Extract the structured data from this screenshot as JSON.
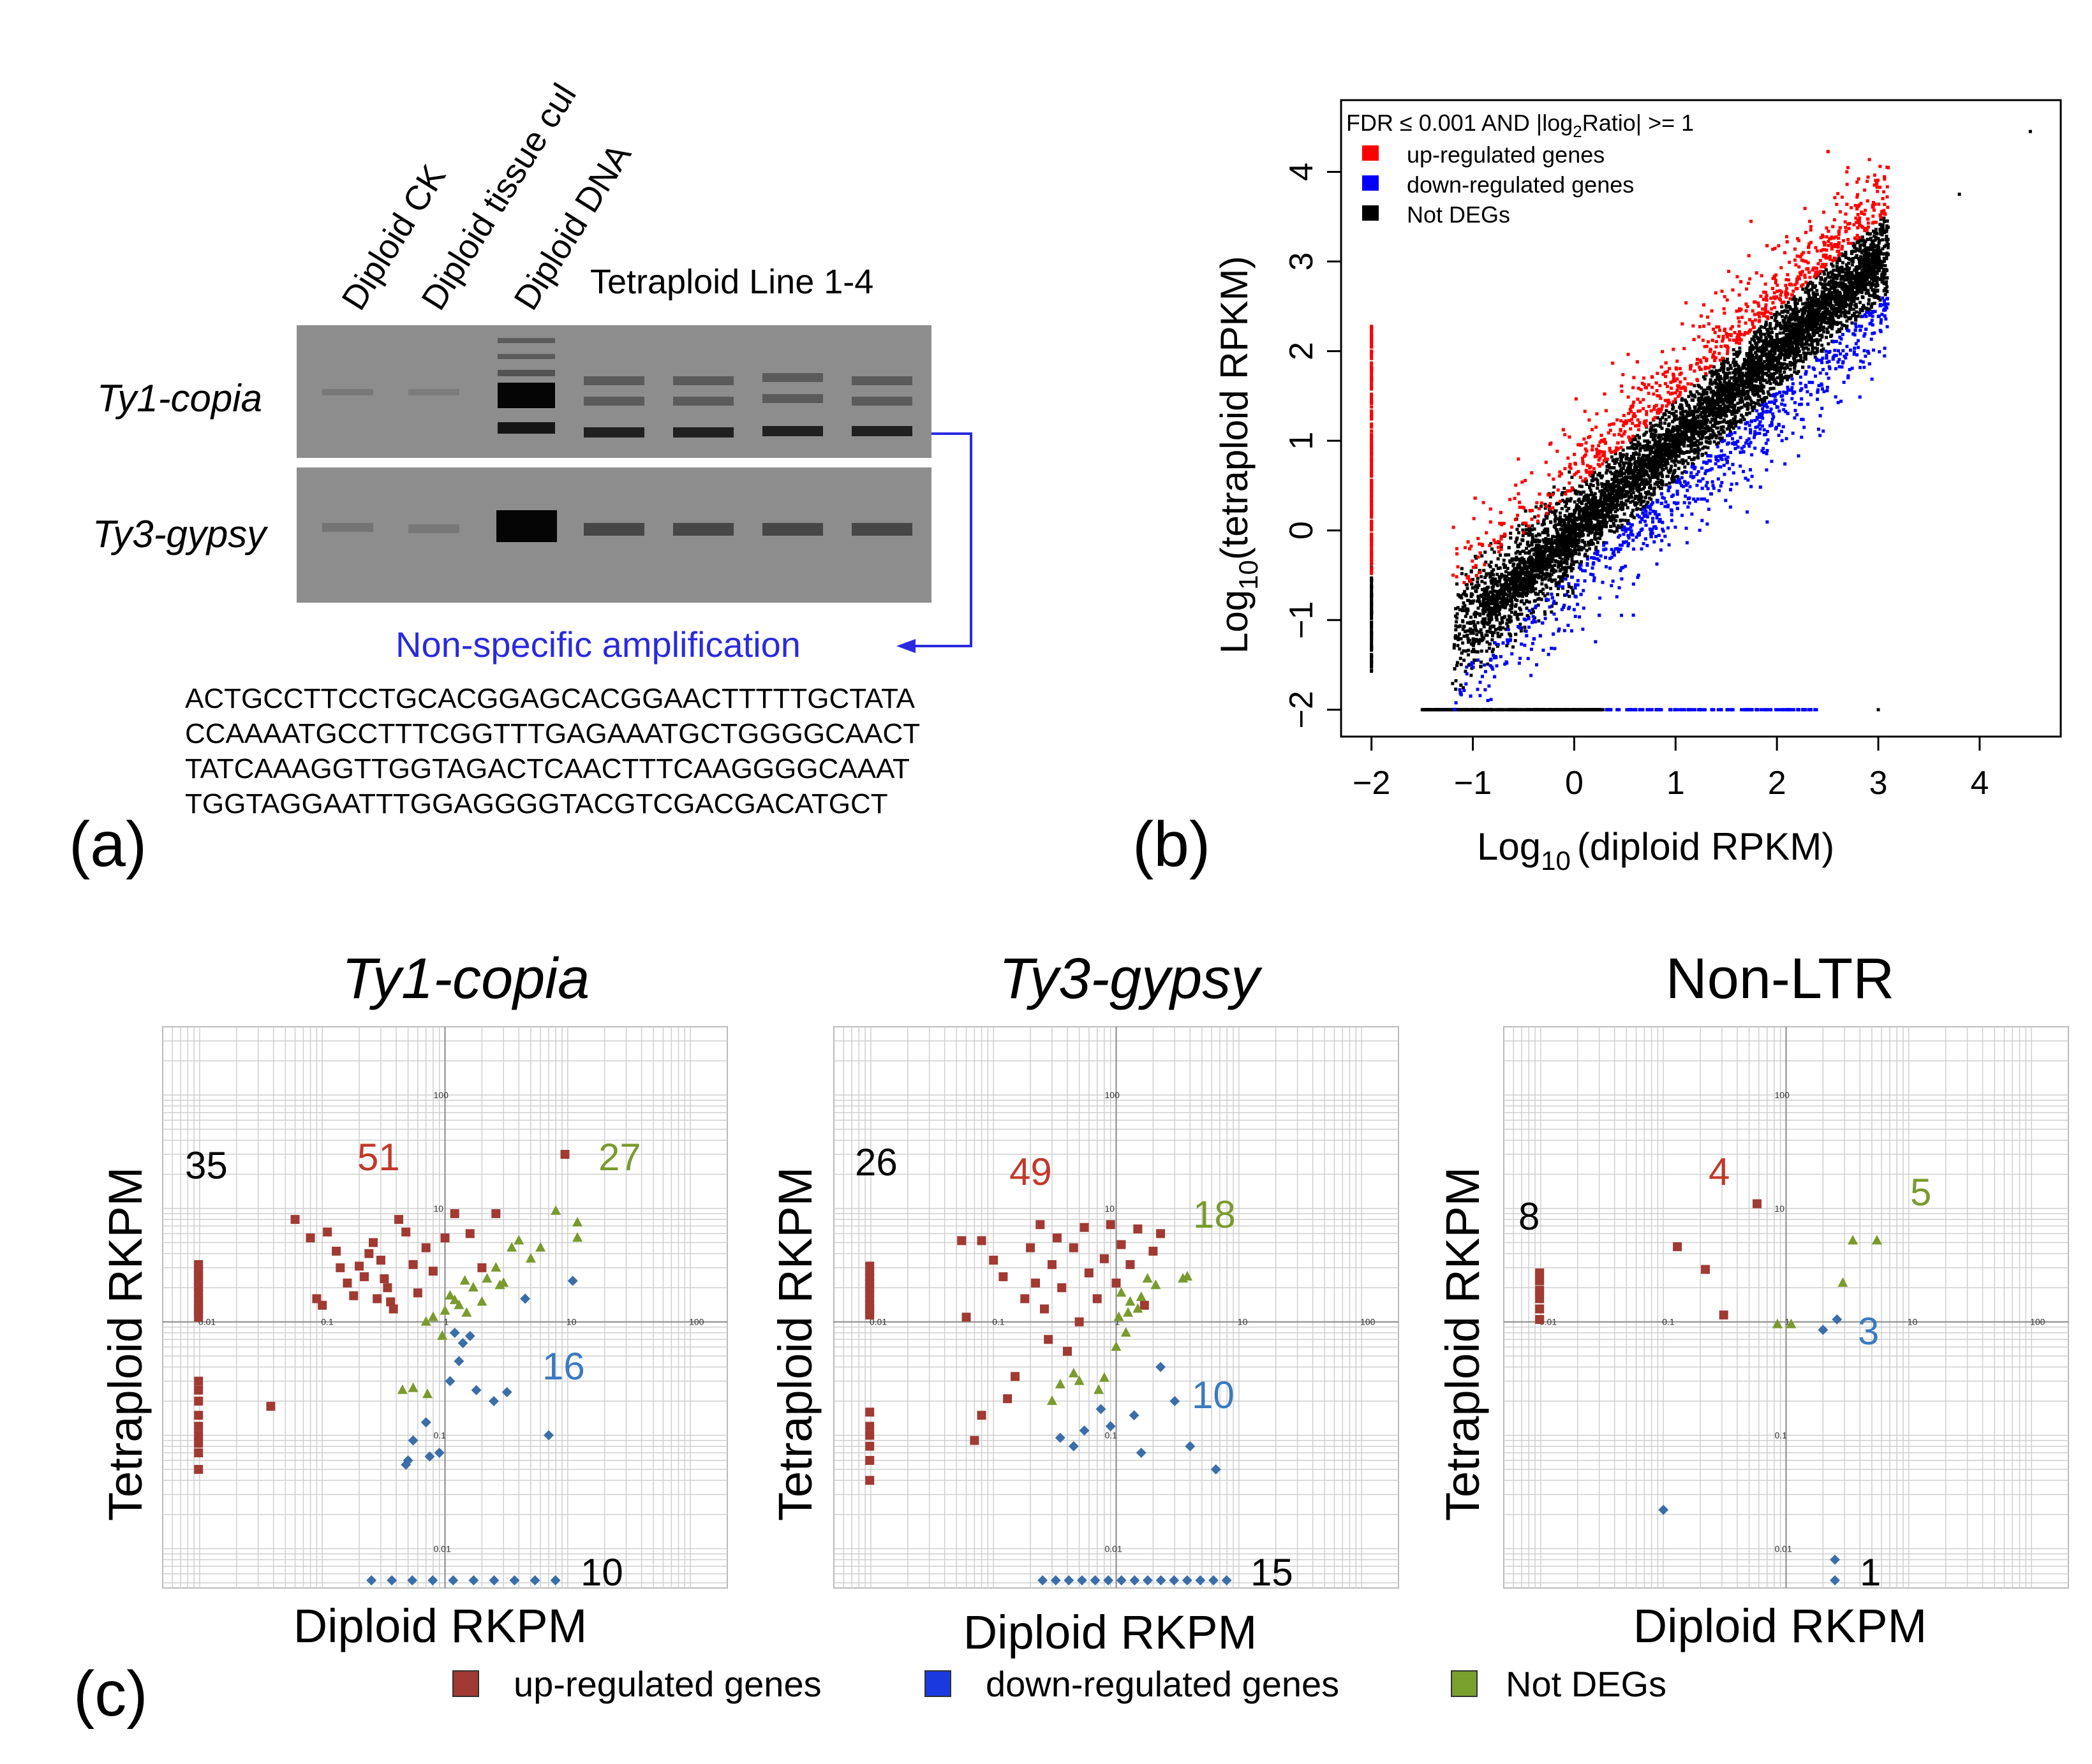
{
  "panel_a": {
    "panel_label": "(a)",
    "lane_labels": [
      "Diploid CK",
      "Diploid tissue cul",
      "Diploid DNA"
    ],
    "tetraploid_label": "Tetraploid Line 1-4",
    "gel_rows": [
      "Ty1-copia",
      "Ty3-gypsy"
    ],
    "nonspecific_label": "Non-specific amplification",
    "sequence": [
      "ACTGCCTTCCTGCACGGAGCACGGAACTTTTTGCTATA",
      "CCAAAATGCCTTTCGGTTTGAGAAATGCTGGGGCAACT",
      "TATCAAAGGTTGGTAGACTCAACTTTCAAGGGGCAAAT",
      "TGGTAGGAATTTGGAGGGGTACGTCGACGACATGCT"
    ],
    "colors": {
      "annotation": "#2a2ae0"
    }
  },
  "chart_data": [
    {
      "id": "b",
      "type": "scatter",
      "panel_label": "(b)",
      "xlabel_base": "Log",
      "xlabel_sub": "10",
      "xlabel_rest": "(diploid RPKM)",
      "ylabel_base": "Log",
      "ylabel_sub": "10",
      "ylabel_rest": "(tetraploid RPKM)",
      "xlim": [
        -2.3,
        4.8
      ],
      "ylim": [
        -2.3,
        4.8
      ],
      "xticks": [
        -2,
        -1,
        0,
        1,
        2,
        3,
        4
      ],
      "yticks": [
        -2,
        -1,
        0,
        1,
        2,
        3,
        4
      ],
      "legend_title_pre": "FDR ≤ 0.001 AND |log",
      "legend_title_sub": "2",
      "legend_title_post": "Ratio| >=  1",
      "legend": [
        {
          "name": "up-regulated genes",
          "color": "#ff0000"
        },
        {
          "name": "down-regulated genes",
          "color": "#0000ff"
        },
        {
          "name": "Not DEGs",
          "color": "#000000"
        }
      ]
    },
    {
      "id": "ty1",
      "type": "scatter",
      "scale": "log",
      "title": "Ty1-copia",
      "xlabel": "Diploid RKPM",
      "ylabel": "Tetraploid RKPM",
      "axis_ticks": [
        "0.01",
        "0.1",
        "1",
        "10",
        "100"
      ],
      "counts": [
        {
          "value": "35",
          "color": "#000000"
        },
        {
          "value": "51",
          "color": "#c0392b"
        },
        {
          "value": "27",
          "color": "#7a9a2e"
        },
        {
          "value": "16",
          "color": "#3a7ac0"
        },
        {
          "value": "10",
          "color": "#000000"
        }
      ],
      "series": [
        {
          "name": "up-regulated genes",
          "color": "#a03a32",
          "shape": "square",
          "points": [
            [
              0.01,
              3.2
            ],
            [
              0.01,
              2.9
            ],
            [
              0.01,
              2.6
            ],
            [
              0.01,
              2.4
            ],
            [
              0.01,
              2.2
            ],
            [
              0.01,
              2.0
            ],
            [
              0.01,
              1.8
            ],
            [
              0.01,
              1.6
            ],
            [
              0.01,
              1.45
            ],
            [
              0.01,
              1.3
            ],
            [
              0.01,
              1.2
            ],
            [
              0.01,
              1.1
            ],
            [
              0.01,
              0.3
            ],
            [
              0.01,
              0.25
            ],
            [
              0.01,
              0.2
            ],
            [
              0.01,
              0.15
            ],
            [
              0.01,
              0.12
            ],
            [
              0.01,
              0.1
            ],
            [
              0.01,
              0.085
            ],
            [
              0.01,
              0.07
            ],
            [
              0.01,
              0.05
            ],
            [
              0.038,
              0.18
            ],
            [
              0.06,
              8
            ],
            [
              0.08,
              5.5
            ],
            [
              0.09,
              1.6
            ],
            [
              0.1,
              1.4
            ],
            [
              0.11,
              6.2
            ],
            [
              0.13,
              4.2
            ],
            [
              0.14,
              3.0
            ],
            [
              0.16,
              2.2
            ],
            [
              0.18,
              1.7
            ],
            [
              0.2,
              3.1
            ],
            [
              0.22,
              2.5
            ],
            [
              0.24,
              4.0
            ],
            [
              0.26,
              5.0
            ],
            [
              0.28,
              1.6
            ],
            [
              0.3,
              3.5
            ],
            [
              0.32,
              2.4
            ],
            [
              0.34,
              2.0
            ],
            [
              0.36,
              1.5
            ],
            [
              0.38,
              1.3
            ],
            [
              0.42,
              8
            ],
            [
              0.48,
              6.2
            ],
            [
              0.55,
              3.2
            ],
            [
              0.6,
              1.8
            ],
            [
              0.7,
              4.5
            ],
            [
              0.8,
              2.8
            ],
            [
              1.0,
              5.5
            ],
            [
              1.2,
              9
            ],
            [
              1.6,
              6
            ],
            [
              2.0,
              3
            ],
            [
              2.6,
              9
            ],
            [
              9.5,
              30
            ]
          ]
        },
        {
          "name": "down-regulated genes",
          "color": "#3a6ea8",
          "shape": "diamond",
          "points": [
            [
              1.2,
              0.8
            ],
            [
              1.4,
              0.65
            ],
            [
              1.6,
              0.75
            ],
            [
              1.3,
              0.45
            ],
            [
              1.1,
              0.3
            ],
            [
              1.8,
              0.25
            ],
            [
              2.5,
              0.2
            ],
            [
              3.2,
              0.24
            ],
            [
              4.5,
              1.6
            ],
            [
              11,
              2.3
            ],
            [
              7,
              0.1
            ],
            [
              0.55,
              0.09
            ],
            [
              0.5,
              0.06
            ],
            [
              0.48,
              0.055
            ],
            [
              0.75,
              0.065
            ],
            [
              0.7,
              0.13
            ],
            [
              0.9,
              0.07
            ]
          ]
        },
        {
          "name": "Not DEGs",
          "color": "#7a9a2e",
          "shape": "triangle",
          "points": [
            [
              0.45,
              0.25
            ],
            [
              0.55,
              0.26
            ],
            [
              0.72,
              0.23
            ],
            [
              0.7,
              1.0
            ],
            [
              0.8,
              1.1
            ],
            [
              0.95,
              0.75
            ],
            [
              1.1,
              1.7
            ],
            [
              1.3,
              1.4
            ],
            [
              1.5,
              1.2
            ],
            [
              1.7,
              2.0
            ],
            [
              2.0,
              1.5
            ],
            [
              2.2,
              2.4
            ],
            [
              2.6,
              3.0
            ],
            [
              3.0,
              2.2
            ],
            [
              3.5,
              4.5
            ],
            [
              4.0,
              5.2
            ],
            [
              5.0,
              3.6
            ],
            [
              6.0,
              4.5
            ],
            [
              8.0,
              9.5
            ],
            [
              12,
              7.5
            ],
            [
              12,
              5.5
            ],
            [
              1.0,
              1.25
            ],
            [
              1.2,
              1.55
            ],
            [
              2.8,
              2.1
            ],
            [
              1.45,
              2.3
            ]
          ]
        }
      ]
    },
    {
      "id": "ty3",
      "type": "scatter",
      "scale": "log",
      "title": "Ty3-gypsy",
      "xlabel": "Diploid RKPM",
      "ylabel": "Tetraploid RKPM",
      "axis_ticks": [
        "0.01",
        "0.1",
        "1",
        "10",
        "100"
      ],
      "counts": [
        {
          "value": "26",
          "color": "#000000"
        },
        {
          "value": "49",
          "color": "#c0392b"
        },
        {
          "value": "18",
          "color": "#7a9a2e"
        },
        {
          "value": "10",
          "color": "#3a7ac0"
        },
        {
          "value": "15",
          "color": "#000000"
        }
      ],
      "series": [
        {
          "name": "up-regulated genes",
          "color": "#a03a32",
          "shape": "square",
          "points": [
            [
              0.01,
              3.1
            ],
            [
              0.01,
              2.8
            ],
            [
              0.01,
              2.5
            ],
            [
              0.01,
              2.2
            ],
            [
              0.01,
              2.0
            ],
            [
              0.01,
              1.8
            ],
            [
              0.01,
              1.6
            ],
            [
              0.01,
              1.4
            ],
            [
              0.01,
              1.3
            ],
            [
              0.01,
              1.15
            ],
            [
              0.01,
              0.16
            ],
            [
              0.01,
              0.12
            ],
            [
              0.01,
              0.1
            ],
            [
              0.01,
              0.08
            ],
            [
              0.01,
              0.06
            ],
            [
              0.01,
              0.04
            ],
            [
              0.055,
              5.2
            ],
            [
              0.06,
              1.1
            ],
            [
              0.07,
              0.09
            ],
            [
              0.08,
              0.15
            ],
            [
              0.08,
              5.2
            ],
            [
              0.1,
              3.5
            ],
            [
              0.12,
              2.5
            ],
            [
              0.13,
              0.21
            ],
            [
              0.15,
              0.33
            ],
            [
              0.18,
              1.6
            ],
            [
              0.2,
              4.5
            ],
            [
              0.22,
              2.2
            ],
            [
              0.24,
              7.2
            ],
            [
              0.26,
              1.3
            ],
            [
              0.28,
              0.7
            ],
            [
              0.3,
              3.2
            ],
            [
              0.33,
              5.5
            ],
            [
              0.36,
              2.0
            ],
            [
              0.4,
              0.55
            ],
            [
              0.45,
              4.5
            ],
            [
              0.5,
              1.0
            ],
            [
              0.55,
              6.8
            ],
            [
              0.6,
              2.7
            ],
            [
              0.7,
              1.6
            ],
            [
              0.8,
              3.6
            ],
            [
              0.9,
              7.2
            ],
            [
              1.0,
              2.2
            ],
            [
              1.1,
              4.8
            ],
            [
              1.3,
              3.2
            ],
            [
              1.5,
              6.6
            ],
            [
              1.7,
              1.4
            ],
            [
              2.0,
              4.2
            ],
            [
              2.3,
              6.0
            ]
          ]
        },
        {
          "name": "down-regulated genes",
          "color": "#3a6ea8",
          "shape": "diamond",
          "points": [
            [
              0.35,
              0.095
            ],
            [
              0.45,
              0.08
            ],
            [
              0.55,
              0.11
            ],
            [
              0.75,
              0.17
            ],
            [
              0.9,
              0.12
            ],
            [
              1.4,
              0.15
            ],
            [
              1.6,
              0.07
            ],
            [
              2.3,
              0.4
            ],
            [
              3.0,
              0.2
            ],
            [
              4.0,
              0.08
            ],
            [
              6.5,
              0.05
            ]
          ]
        },
        {
          "name": "Not DEGs",
          "color": "#7a9a2e",
          "shape": "triangle",
          "points": [
            [
              0.45,
              0.35
            ],
            [
              0.5,
              0.3
            ],
            [
              0.35,
              0.28
            ],
            [
              0.72,
              0.25
            ],
            [
              0.8,
              0.32
            ],
            [
              1.0,
              0.6
            ],
            [
              1.1,
              1.8
            ],
            [
              1.3,
              1.5
            ],
            [
              1.5,
              1.3
            ],
            [
              1.8,
              2.4
            ],
            [
              2.1,
              2.1
            ],
            [
              1.05,
              1.1
            ],
            [
              1.25,
              1.2
            ],
            [
              1.6,
              1.65
            ],
            [
              3.5,
              2.4
            ],
            [
              3.8,
              2.5
            ],
            [
              1.2,
              0.8
            ],
            [
              0.3,
              0.2
            ]
          ]
        }
      ]
    },
    {
      "id": "nonltr",
      "type": "scatter",
      "scale": "log",
      "title": "Non-LTR",
      "xlabel": "Diploid RKPM",
      "ylabel": "Tetraploid RKPM",
      "axis_ticks": [
        "0.01",
        "0.1",
        "1",
        "10",
        "100"
      ],
      "counts": [
        {
          "value": "8",
          "color": "#000000"
        },
        {
          "value": "4",
          "color": "#c0392b"
        },
        {
          "value": "5",
          "color": "#7a9a2e"
        },
        {
          "value": "3",
          "color": "#3a7ac0"
        },
        {
          "value": "1",
          "color": "#000000"
        }
      ],
      "series": [
        {
          "name": "up-regulated genes",
          "color": "#a03a32",
          "shape": "square",
          "points": [
            [
              0.01,
              2.7
            ],
            [
              0.01,
              2.3
            ],
            [
              0.01,
              1.9
            ],
            [
              0.01,
              1.6
            ],
            [
              0.01,
              1.3
            ],
            [
              0.01,
              1.05
            ],
            [
              0.13,
              4.6
            ],
            [
              0.22,
              2.9
            ],
            [
              0.31,
              1.15
            ],
            [
              0.58,
              11
            ]
          ]
        },
        {
          "name": "down-regulated genes",
          "color": "#3a6ea8",
          "shape": "diamond",
          "points": [
            [
              0.1,
              0.022
            ],
            [
              2.0,
              0.85
            ],
            [
              2.6,
              1.05
            ],
            [
              2.5,
              0.008
            ]
          ]
        },
        {
          "name": "Not DEGs",
          "color": "#7a9a2e",
          "shape": "triangle",
          "points": [
            [
              0.85,
              0.95
            ],
            [
              1.1,
              0.95
            ],
            [
              2.9,
              2.2
            ],
            [
              3.5,
              5.2
            ],
            [
              5.5,
              5.2
            ]
          ]
        }
      ]
    }
  ],
  "panel_c": {
    "panel_label": "(c)",
    "legend": [
      {
        "name": "up-regulated genes",
        "color": "#a03a32"
      },
      {
        "name": "down-regulated genes",
        "color": "#1a3ae0"
      },
      {
        "name": "Not DEGs",
        "color": "#7aa02e"
      }
    ]
  }
}
